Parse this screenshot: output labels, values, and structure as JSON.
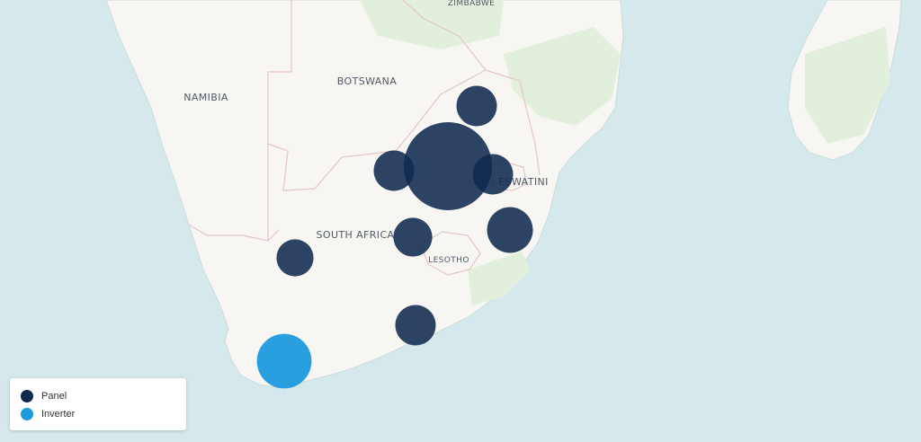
{
  "map": {
    "colors": {
      "water": "#d5e8eb",
      "land": "#f8f6f3",
      "greenery": "#e3efdd",
      "border": "#e5c4c9",
      "panel": "#0f2a4f",
      "inverter": "#1e9ade"
    },
    "labels": {
      "top_partial": "ZIMBABWE",
      "namibia": "NAMIBIA",
      "botswana": "BOTSWANA",
      "south_africa": "SOUTH AFRICA",
      "eswatini": "ESWATINI",
      "lesotho": "LESOTHO"
    },
    "bubbles": [
      {
        "category": "panel",
        "relative_size": 0.23,
        "location_hint": "Limpopo"
      },
      {
        "category": "panel",
        "relative_size": 0.5,
        "location_hint": "Gauteng"
      },
      {
        "category": "panel",
        "relative_size": 0.23,
        "location_hint": "North West"
      },
      {
        "category": "panel",
        "relative_size": 0.23,
        "location_hint": "Mpumalanga"
      },
      {
        "category": "panel",
        "relative_size": 0.26,
        "location_hint": "KwaZulu-Natal"
      },
      {
        "category": "panel",
        "relative_size": 0.22,
        "location_hint": "Free State"
      },
      {
        "category": "panel",
        "relative_size": 0.21,
        "location_hint": "Northern Cape"
      },
      {
        "category": "panel",
        "relative_size": 0.23,
        "location_hint": "Eastern Cape"
      },
      {
        "category": "inverter",
        "relative_size": 0.31,
        "location_hint": "Western Cape"
      }
    ]
  },
  "legend": {
    "items": [
      {
        "label": "Panel",
        "color": "#0f2a4f"
      },
      {
        "label": "Inverter",
        "color": "#1e9ade"
      }
    ]
  }
}
